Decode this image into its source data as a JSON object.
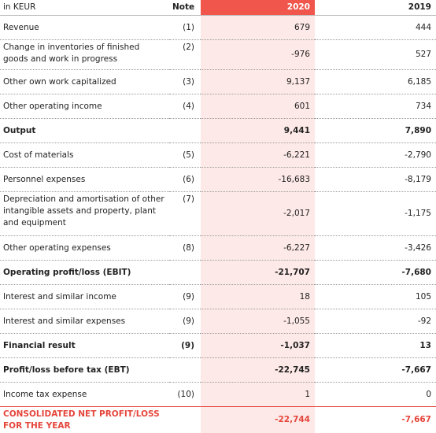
{
  "table": {
    "header": [
      "in KEUR",
      "Note",
      "2020",
      "2019"
    ],
    "rows": [
      {
        "label": "Revenue",
        "note": "(1)",
        "y2020": "679",
        "y2019": "444"
      },
      {
        "label": "Change in inventories of finished goods and work in progress",
        "note": "(2)",
        "y2020": "-976",
        "y2019": "527"
      },
      {
        "label": "Other own work capitalized",
        "note": "(3)",
        "y2020": "9,137",
        "y2019": "6,185"
      },
      {
        "label": "Other operating income",
        "note": "(4)",
        "y2020": "601",
        "y2019": "734"
      },
      {
        "label": "Output",
        "y2020": "9,441",
        "y2019": "7,890"
      },
      {
        "label": "Cost of materials",
        "note": "(5)",
        "y2020": "-6,221",
        "y2019": "-2,790"
      },
      {
        "label": "Personnel expenses",
        "note": "(6)",
        "y2020": "-16,683",
        "y2019": "-8,179"
      },
      {
        "label": "Depreciation and amortisation of other intangible assets and property, plant and equipment",
        "note": "(7)",
        "y2020": "-2,017",
        "y2019": "-1,175"
      },
      {
        "label": "Other operating expenses",
        "note": "(8)",
        "y2020": "-6,227",
        "y2019": "-3,426"
      },
      {
        "label": "Operating profit/loss (EBIT)",
        "y2020": "-21,707",
        "y2019": "-7,680"
      },
      {
        "label": "Interest and similar income",
        "note": "(9)",
        "y2020": "18",
        "y2019": "105"
      },
      {
        "label": "Interest and similar expenses",
        "note": "(9)",
        "y2020": "-1,055",
        "y2019": "-92"
      },
      {
        "label": "Financial result",
        "note": "(9)",
        "y2020": "-1,037",
        "y2019": "13"
      },
      {
        "label": "Profit/loss before tax (EBT)",
        "y2020": "-22,745",
        "y2019": "-7,667"
      },
      {
        "label": "Income tax expense",
        "note": "(10)",
        "y2020": "1",
        "y2019": "0"
      },
      {
        "label": "CONSOLIDATED NET PROFIT/LOSS FOR THE YEAR",
        "y2020": "-22,744",
        "y2019": "-7,667"
      }
    ]
  }
}
